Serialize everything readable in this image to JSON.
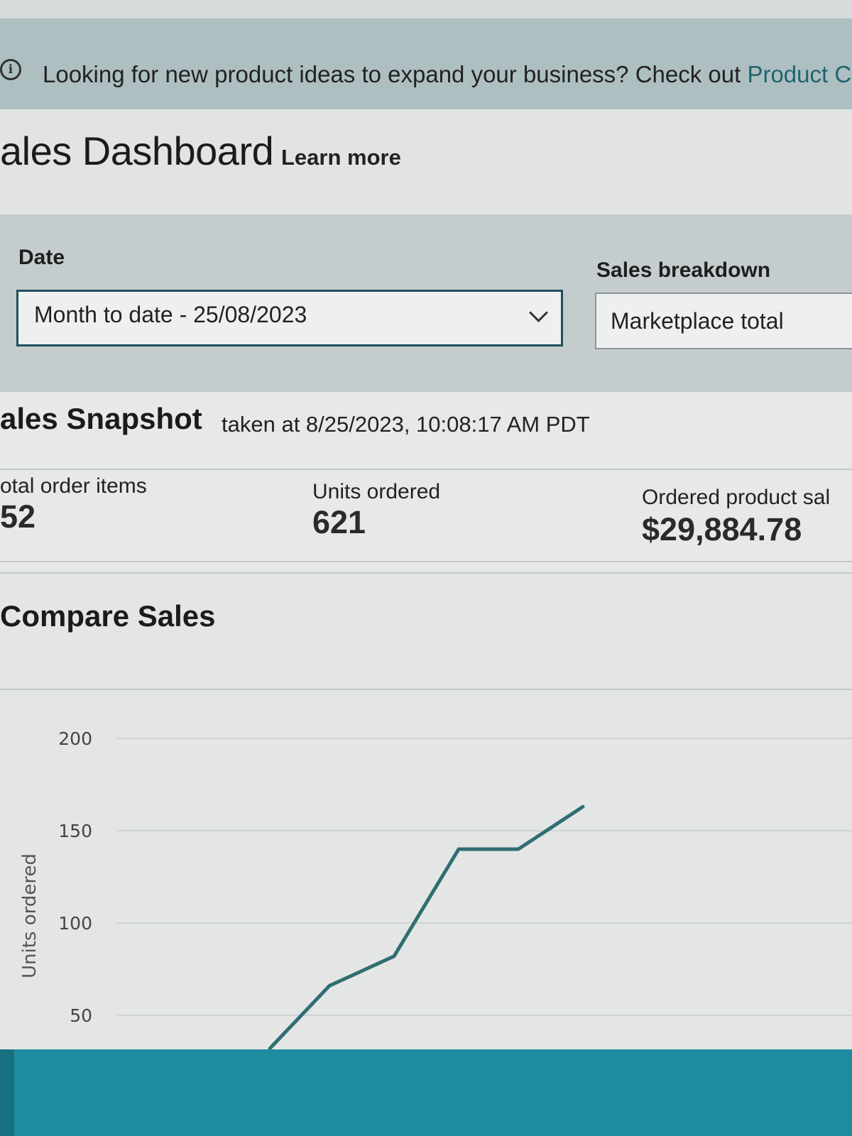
{
  "banner": {
    "text": "Looking for new product ideas to expand your business? Check out ",
    "link": "Product C"
  },
  "header": {
    "title": "ales Dashboard",
    "learn_more": "Learn more"
  },
  "filters": {
    "date_label": "Date",
    "date_value": "Month to date - 25/08/2023",
    "breakdown_label": "Sales breakdown",
    "breakdown_value": "Marketplace total"
  },
  "snapshot": {
    "title": "ales Snapshot",
    "taken_at": "taken at 8/25/2023, 10:08:17 AM PDT",
    "metrics": [
      {
        "label": "otal order items",
        "value": "52"
      },
      {
        "label": "Units ordered",
        "value": "621"
      },
      {
        "label": "Ordered product sal",
        "value": "$29,884.78"
      }
    ]
  },
  "compare": {
    "title": "Compare Sales"
  },
  "chart_data": {
    "type": "line",
    "ylabel": "Units ordered",
    "yticks": [
      50,
      100,
      150,
      200
    ],
    "ylim": [
      0,
      200
    ],
    "grid": true,
    "series": [
      {
        "values": [
          {
            "x": 0.0,
            "y": 32
          },
          {
            "x": 0.12,
            "y": 66
          },
          {
            "x": 0.25,
            "y": 82
          },
          {
            "x": 0.38,
            "y": 140
          },
          {
            "x": 0.5,
            "y": 140
          },
          {
            "x": 0.63,
            "y": 163
          }
        ]
      }
    ],
    "colors": {
      "line": "#2f6e72",
      "grid": "#cfd3d4"
    }
  }
}
